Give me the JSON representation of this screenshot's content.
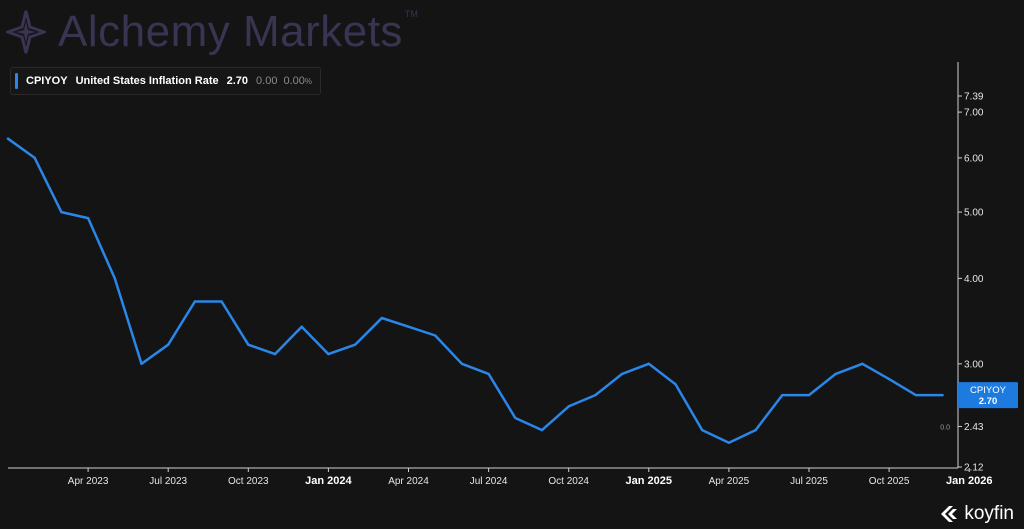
{
  "watermark": {
    "brand": "Alchemy Markets",
    "tm": "TM"
  },
  "legend": {
    "ticker": "CPIYOY",
    "name": "United States Inflation Rate",
    "value": "2.70",
    "change": "0.00",
    "change_pct": "0.00",
    "pct_sign": "%",
    "color": "#2a86e8"
  },
  "branding": {
    "name": "koyfin",
    "icon": "koyfin-logo-icon"
  },
  "chart_data": {
    "type": "line",
    "y_scale": "log",
    "ylim": [
      2.12,
      7.39
    ],
    "y_ticks": [
      "7.39",
      "7.00",
      "6.00",
      "5.00",
      "4.00",
      "3.00",
      "2.43",
      "2.12"
    ],
    "x_ticks": [
      {
        "date": "2023-04",
        "label": "Apr 2023",
        "bold": false
      },
      {
        "date": "2023-07",
        "label": "Jul 2023",
        "bold": false
      },
      {
        "date": "2023-10",
        "label": "Oct 2023",
        "bold": false
      },
      {
        "date": "2024-01",
        "label": "Jan 2024",
        "bold": true
      },
      {
        "date": "2024-04",
        "label": "Apr 2024",
        "bold": false
      },
      {
        "date": "2024-07",
        "label": "Jul 2024",
        "bold": false
      },
      {
        "date": "2024-10",
        "label": "Oct 2024",
        "bold": false
      },
      {
        "date": "2025-01",
        "label": "Jan 2025",
        "bold": true
      },
      {
        "date": "2025-04",
        "label": "Apr 2025",
        "bold": false
      },
      {
        "date": "2025-07",
        "label": "Jul 2025",
        "bold": false
      },
      {
        "date": "2025-10",
        "label": "Oct 2025",
        "bold": false
      },
      {
        "date": "2026-01",
        "label": "Jan 2026",
        "bold": true
      }
    ],
    "series": [
      {
        "name": "CPIYOY",
        "color": "#2a86e8",
        "points": [
          {
            "x": "2023-01",
            "y": 6.4
          },
          {
            "x": "2023-02",
            "y": 6.0
          },
          {
            "x": "2023-03",
            "y": 5.0
          },
          {
            "x": "2023-04",
            "y": 4.9
          },
          {
            "x": "2023-05",
            "y": 4.0
          },
          {
            "x": "2023-06",
            "y": 3.0
          },
          {
            "x": "2023-07",
            "y": 3.2
          },
          {
            "x": "2023-08",
            "y": 3.7
          },
          {
            "x": "2023-09",
            "y": 3.7
          },
          {
            "x": "2023-10",
            "y": 3.2
          },
          {
            "x": "2023-11",
            "y": 3.1
          },
          {
            "x": "2023-12",
            "y": 3.4
          },
          {
            "x": "2024-01",
            "y": 3.1
          },
          {
            "x": "2024-02",
            "y": 3.2
          },
          {
            "x": "2024-03",
            "y": 3.5
          },
          {
            "x": "2024-04",
            "y": 3.4
          },
          {
            "x": "2024-05",
            "y": 3.3
          },
          {
            "x": "2024-06",
            "y": 3.0
          },
          {
            "x": "2024-07",
            "y": 2.9
          },
          {
            "x": "2024-08",
            "y": 2.5
          },
          {
            "x": "2024-09",
            "y": 2.4
          },
          {
            "x": "2024-10",
            "y": 2.6
          },
          {
            "x": "2024-11",
            "y": 2.7
          },
          {
            "x": "2024-12",
            "y": 2.9
          },
          {
            "x": "2025-01",
            "y": 3.0
          },
          {
            "x": "2025-02",
            "y": 2.8
          },
          {
            "x": "2025-03",
            "y": 2.4
          },
          {
            "x": "2025-04",
            "y": 2.3
          },
          {
            "x": "2025-05",
            "y": 2.4
          },
          {
            "x": "2025-06",
            "y": 2.7
          },
          {
            "x": "2025-07",
            "y": 2.7
          },
          {
            "x": "2025-08",
            "y": 2.9
          },
          {
            "x": "2025-09",
            "y": 3.0
          },
          {
            "x": "2025-10",
            "y": 2.85
          },
          {
            "x": "2025-11",
            "y": 2.7
          },
          {
            "x": "2025-12",
            "y": 2.7
          }
        ]
      }
    ],
    "last_value_label": {
      "ticker": "CPIYOY",
      "value": "2.70"
    },
    "zero_marker": "0.0",
    "grid": false
  }
}
